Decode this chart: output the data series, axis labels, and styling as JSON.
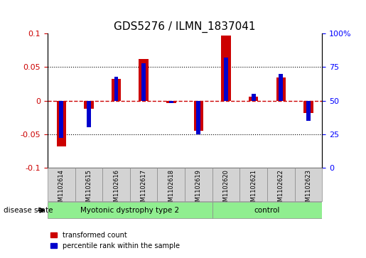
{
  "title": "GDS5276 / ILMN_1837041",
  "samples": [
    "GSM1102614",
    "GSM1102615",
    "GSM1102616",
    "GSM1102617",
    "GSM1102618",
    "GSM1102619",
    "GSM1102620",
    "GSM1102621",
    "GSM1102622",
    "GSM1102623"
  ],
  "red_values": [
    -0.068,
    -0.012,
    0.032,
    0.062,
    -0.004,
    -0.045,
    0.097,
    0.006,
    0.035,
    -0.018
  ],
  "blue_values_pct": [
    22,
    30,
    68,
    78,
    48,
    25,
    82,
    55,
    70,
    35
  ],
  "ylim_left": [
    -0.1,
    0.1
  ],
  "ylim_right": [
    0,
    100
  ],
  "yticks_left": [
    -0.1,
    -0.05,
    0,
    0.05,
    0.1
  ],
  "ytick_labels_left": [
    "-0.1",
    "-0.05",
    "0",
    "0.05",
    "0.1"
  ],
  "yticks_right": [
    0,
    25,
    50,
    75,
    100
  ],
  "ytick_labels_right": [
    "0",
    "25",
    "50",
    "75",
    "100%"
  ],
  "disease_groups": [
    {
      "label": "Myotonic dystrophy type 2",
      "start": 0,
      "end": 6,
      "color": "#90EE90"
    },
    {
      "label": "control",
      "start": 6,
      "end": 10,
      "color": "#90EE90"
    }
  ],
  "disease_state_label": "disease state",
  "bar_width": 0.35,
  "blue_bar_width": 0.15,
  "red_color": "#CC0000",
  "blue_color": "#0000CC",
  "zero_line_color": "#CC0000",
  "grid_color": "#000000",
  "bg_color": "#FFFFFF",
  "sample_box_color": "#D3D3D3",
  "legend_red": "transformed count",
  "legend_blue": "percentile rank within the sample"
}
